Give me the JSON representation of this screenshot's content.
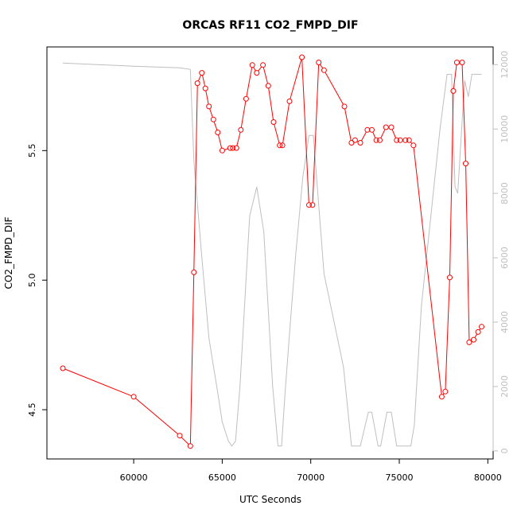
{
  "chart_data": {
    "type": "line",
    "title": "ORCAS RF11 CO2_FMPD_DIF",
    "xlabel": "UTC Seconds",
    "ylabel": "CO2_FMPD_DIF",
    "xlim": [
      55100,
      80300
    ],
    "ylim": [
      4.31,
      5.9
    ],
    "y2lim": [
      -250,
      12550
    ],
    "x_ticks": [
      60000,
      65000,
      70000,
      75000,
      80000
    ],
    "y_ticks": [
      4.5,
      5.0,
      5.5
    ],
    "y2_ticks": [
      0,
      2000,
      4000,
      6000,
      8000,
      10000,
      12000
    ],
    "x_tick_labels": [
      "60000",
      "65000",
      "70000",
      "75000",
      "80000"
    ],
    "y_tick_labels": [
      "4.5",
      "5.0",
      "5.5"
    ],
    "y2_tick_labels": [
      "0",
      "2000",
      "4000",
      "6000",
      "8000",
      "10000",
      "12000"
    ],
    "grid": false,
    "series": [
      {
        "role": "primary",
        "axis": "left",
        "color": "#ff0000",
        "style": "line+open-circles",
        "x": [
          56000,
          60000,
          62600,
          63200,
          63400,
          63600,
          63850,
          64050,
          64250,
          64500,
          64750,
          65000,
          65450,
          65600,
          65800,
          66050,
          66350,
          66700,
          66950,
          67300,
          67600,
          67900,
          68250,
          68400,
          68800,
          69500,
          69900,
          70100,
          70450,
          70750,
          71900,
          72300,
          72500,
          72800,
          73200,
          73450,
          73700,
          73900,
          74250,
          74550,
          74850,
          75050,
          75350,
          75550,
          75800,
          77400,
          77600,
          77850,
          78050,
          78250,
          78550,
          78750,
          78950,
          79200,
          79450,
          79650
        ],
        "y": [
          4.66,
          4.55,
          4.4,
          4.36,
          5.03,
          5.76,
          5.8,
          5.74,
          5.67,
          5.62,
          5.57,
          5.5,
          5.51,
          5.51,
          5.51,
          5.58,
          5.7,
          5.83,
          5.8,
          5.83,
          5.75,
          5.61,
          5.52,
          5.52,
          5.69,
          5.86,
          5.29,
          5.29,
          5.84,
          5.81,
          5.67,
          5.53,
          5.54,
          5.53,
          5.58,
          5.58,
          5.54,
          5.54,
          5.59,
          5.59,
          5.54,
          5.54,
          5.54,
          5.54,
          5.52,
          4.55,
          4.57,
          5.01,
          5.73,
          5.84,
          5.84,
          5.45,
          4.76,
          4.77,
          4.8,
          4.82
        ]
      },
      {
        "role": "secondary",
        "axis": "right",
        "color": "#bfbfbf",
        "style": "line",
        "x": [
          56000,
          60000,
          62600,
          63200,
          63400,
          63850,
          64250,
          64750,
          65000,
          65350,
          65550,
          65750,
          66000,
          66550,
          66950,
          67350,
          67850,
          68150,
          68350,
          68550,
          68850,
          69150,
          69550,
          69900,
          70150,
          70750,
          71850,
          72300,
          72800,
          73250,
          73450,
          73800,
          73950,
          74300,
          74550,
          74850,
          75250,
          75650,
          75850,
          76250,
          77300,
          77700,
          77950,
          78150,
          78300,
          78500,
          78700,
          78900,
          79100,
          79350,
          79650
        ],
        "y": [
          12050,
          11950,
          11900,
          11850,
          9000,
          6000,
          3500,
          1800,
          900,
          300,
          150,
          300,
          2000,
          7300,
          8200,
          6800,
          2000,
          150,
          150,
          1800,
          4000,
          6100,
          8500,
          9800,
          9800,
          5500,
          2600,
          150,
          150,
          1200,
          1200,
          150,
          150,
          1200,
          1200,
          150,
          150,
          150,
          800,
          4500,
          10000,
          11700,
          11700,
          8200,
          8000,
          9800,
          11500,
          11000,
          11700,
          11700,
          11700
        ]
      }
    ]
  }
}
